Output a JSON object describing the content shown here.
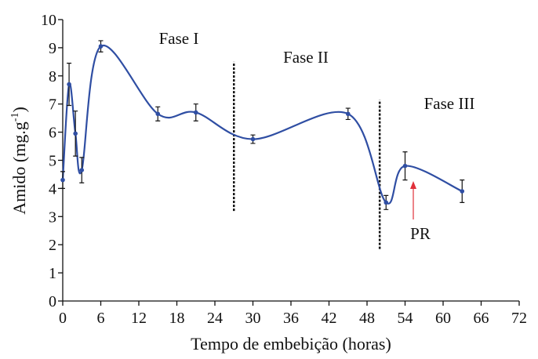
{
  "chart_data": {
    "type": "line",
    "xlabel": "Tempo de embebição (horas)",
    "ylabel_parts": [
      "Amido (mg.g",
      "-1",
      ")"
    ],
    "x": [
      0,
      1,
      2,
      3,
      6,
      15,
      21,
      30,
      45,
      51,
      54,
      63
    ],
    "series": [
      {
        "color": "#2f4ea3",
        "values": [
          4.3,
          7.7,
          5.95,
          4.65,
          9.05,
          6.65,
          6.7,
          5.75,
          6.65,
          3.5,
          4.8,
          3.9
        ],
        "errors": [
          0.3,
          0.75,
          0.8,
          0.45,
          0.2,
          0.25,
          0.3,
          0.15,
          0.2,
          0.25,
          0.5,
          0.4
        ]
      }
    ],
    "xlim": [
      0,
      72
    ],
    "xticks": [
      0,
      6,
      12,
      18,
      24,
      30,
      36,
      42,
      48,
      54,
      60,
      66,
      72
    ],
    "ylim": [
      0,
      10
    ],
    "yticks": [
      0,
      1,
      2,
      3,
      4,
      5,
      6,
      7,
      8,
      9,
      10
    ],
    "dividers": [
      {
        "x": 27,
        "y": [
          3.2,
          8.5
        ]
      },
      {
        "x": 50,
        "y": [
          1.85,
          7.15
        ]
      }
    ],
    "annotations": [
      {
        "text": "Fase I"
      },
      {
        "text": "Fase II"
      },
      {
        "text": "Fase III"
      },
      {
        "text": "PR",
        "color": "#e0303a"
      }
    ]
  }
}
